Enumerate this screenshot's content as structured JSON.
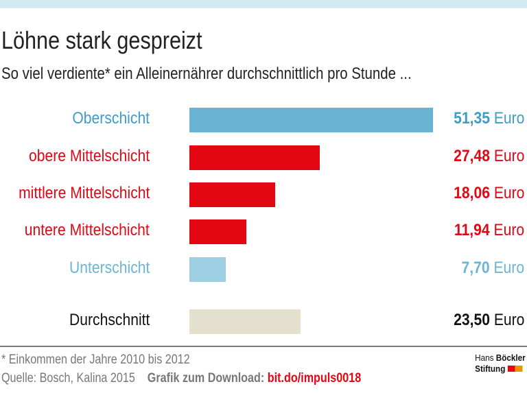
{
  "title": "Löhne stark gespreizt",
  "subtitle": "So viel verdiente* ein Alleinernährer durchschnittlich pro Stunde ...",
  "chart_data": {
    "type": "bar",
    "orientation": "horizontal",
    "categories": [
      "Oberschicht",
      "obere Mittelschicht",
      "mittlere Mittelschicht",
      "untere Mittelschicht",
      "Unterschicht",
      "Durchschnitt"
    ],
    "values": [
      51.35,
      27.48,
      18.06,
      11.94,
      7.7,
      23.5
    ],
    "value_labels": [
      "51,35",
      "27,48",
      "18,06",
      "11,94",
      "7,70",
      "23,50"
    ],
    "unit": "Euro",
    "colors": [
      "#69b4d3",
      "#e30613",
      "#e30613",
      "#e30613",
      "#9ccfe2",
      "#e3e0cd"
    ],
    "label_colors": [
      "#3d9dc8",
      "#e30613",
      "#e30613",
      "#e30613",
      "#6ab6d6",
      "#111111"
    ],
    "xlim": [
      0,
      51.35
    ]
  },
  "footnote": "* Einkommen der Jahre 2010 bis 2012",
  "source": "Quelle:  Bosch, Kalina 2015",
  "download_label": "Grafik zum Download:",
  "download_link": "bit.do/impuls0018",
  "logo": {
    "line1a": "Hans",
    "line1b": "Böckler",
    "line2": "Stiftung"
  }
}
